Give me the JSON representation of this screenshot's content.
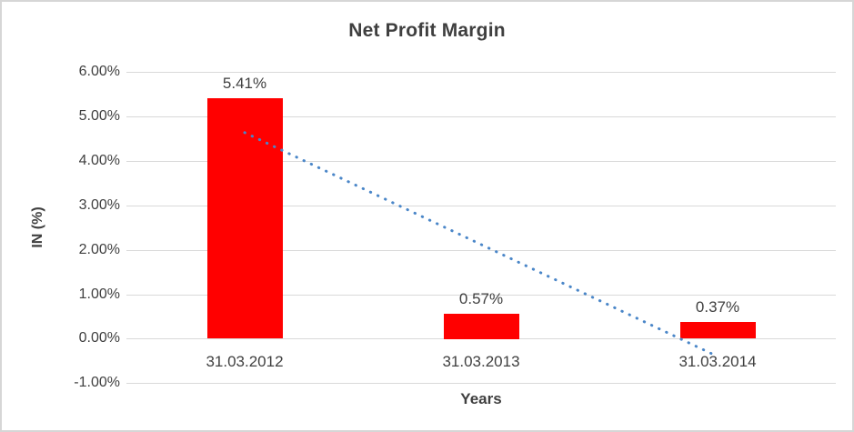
{
  "chart": {
    "title": "Net Profit Margin",
    "y_axis_title": "IN (%)",
    "x_axis_title": "Years"
  },
  "chart_data": {
    "type": "bar",
    "title": "Net Profit Margin",
    "xlabel": "Years",
    "ylabel": "IN (%)",
    "categories": [
      "31.03.2012",
      "31.03.2013",
      "31.03.2014"
    ],
    "values": [
      5.41,
      0.57,
      0.37
    ],
    "value_labels": [
      "5.41%",
      "0.57%",
      "0.37%"
    ],
    "unit": "percent",
    "ylim": [
      -1,
      6
    ],
    "y_ticks": [
      {
        "value": 6,
        "label": "6.00%"
      },
      {
        "value": 5,
        "label": "5.00%"
      },
      {
        "value": 4,
        "label": "4.00%"
      },
      {
        "value": 3,
        "label": "3.00%"
      },
      {
        "value": 2,
        "label": "2.00%"
      },
      {
        "value": 1,
        "label": "1.00%"
      },
      {
        "value": 0,
        "label": "0.00%"
      },
      {
        "value": -1,
        "label": "-1.00%"
      }
    ],
    "grid": true,
    "legend": "none",
    "colors": {
      "bar": "#ff0000",
      "trendline": "#4a86c8",
      "gridline": "#d9d9d9",
      "text": "#404040"
    },
    "trendline": {
      "style": "dotted",
      "start_category_index": 0,
      "end_category_index": 2,
      "start_value": 4.64,
      "end_value": -0.4
    }
  }
}
